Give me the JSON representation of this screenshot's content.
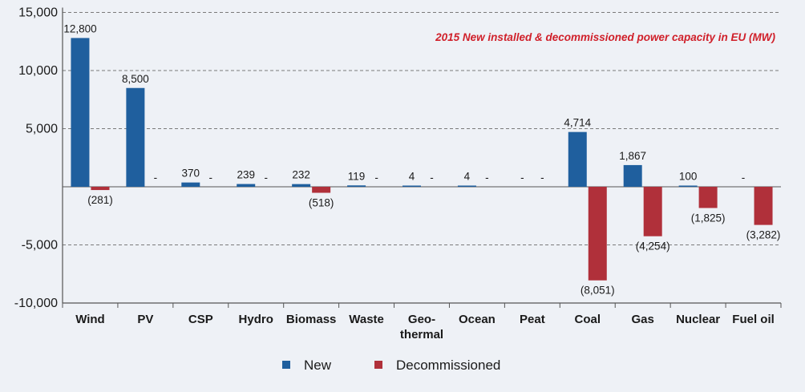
{
  "chart_data": {
    "type": "bar",
    "title": "2015 New installed & decommissioned power capacity in EU (MW)",
    "categories": [
      "Wind",
      "PV",
      "CSP",
      "Hydro",
      "Biomass",
      "Waste",
      "Geo-\nthermal",
      "Ocean",
      "Peat",
      "Coal",
      "Gas",
      "Nuclear",
      "Fuel oil"
    ],
    "series": [
      {
        "name": "New",
        "color": "#1f5f9e",
        "values": [
          12800,
          8500,
          370,
          239,
          232,
          119,
          4,
          4,
          0,
          4714,
          1867,
          100,
          0
        ],
        "labels": [
          "12,800",
          "8,500",
          "370",
          "239",
          "232",
          "119",
          "4",
          "4",
          "-",
          "4,714",
          "1,867",
          "100",
          "-"
        ]
      },
      {
        "name": "Decommissioned",
        "color": "#b0303a",
        "values": [
          -281,
          0,
          0,
          0,
          -518,
          0,
          0,
          0,
          0,
          -8051,
          -4254,
          -1825,
          -3282
        ],
        "labels": [
          "(281)",
          "-",
          "-",
          "-",
          "(518)",
          "-",
          "-",
          "-",
          "-",
          "(8,051)",
          "(4,254)",
          "(1,825)",
          "(3,282)"
        ]
      }
    ],
    "ylim": [
      -10000,
      15000
    ],
    "yticks": [
      15000,
      10000,
      5000,
      -5000,
      -10000
    ],
    "ytick_labels": [
      "15,000",
      "10,000",
      "5,000",
      "-5,000",
      "-10,000"
    ],
    "grid": "dashed horizontal",
    "legend_position": "bottom",
    "title_color": "#d0202a"
  }
}
